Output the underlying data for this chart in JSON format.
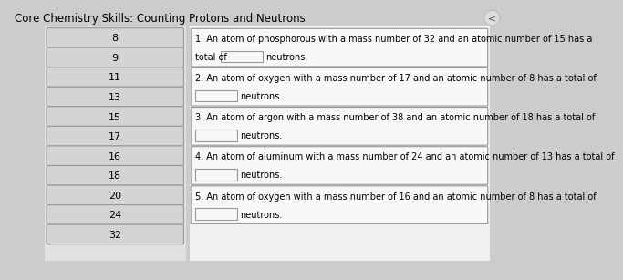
{
  "title": "Core Chemistry Skills: Counting Protons and Neutrons",
  "answer_boxes": [
    "8",
    "9",
    "11",
    "13",
    "15",
    "17",
    "16",
    "18",
    "20",
    "24",
    "32"
  ],
  "q_lines": [
    [
      "1. An atom of phosphorous with a mass number of 32 and an atomic number of 15 has a",
      "total of",
      "neutrons."
    ],
    [
      "2. An atom of oxygen with a mass number of 17 and an atomic number of 8 has a total of",
      "",
      "neutrons."
    ],
    [
      "3. An atom of argon with a mass number of 38 and an atomic number of 18 has a total of",
      "",
      "neutrons."
    ],
    [
      "4. An atom of aluminum with a mass number of 24 and an atomic number of 13 has a total of",
      "",
      "neutrons."
    ],
    [
      "5. An atom of oxygen with a mass number of 16 and an atomic number of 8 has a total of",
      "",
      "neutrons."
    ]
  ],
  "bg_color": "#cccccc",
  "left_panel_bg": "#e0e0e0",
  "box_fill": "#d4d4d4",
  "box_border": "#999999",
  "white_fill": "#f8f8f8",
  "right_panel_bg": "#f0f0f0",
  "title_fontsize": 8.5,
  "answer_fontsize": 8,
  "question_fontsize": 7
}
